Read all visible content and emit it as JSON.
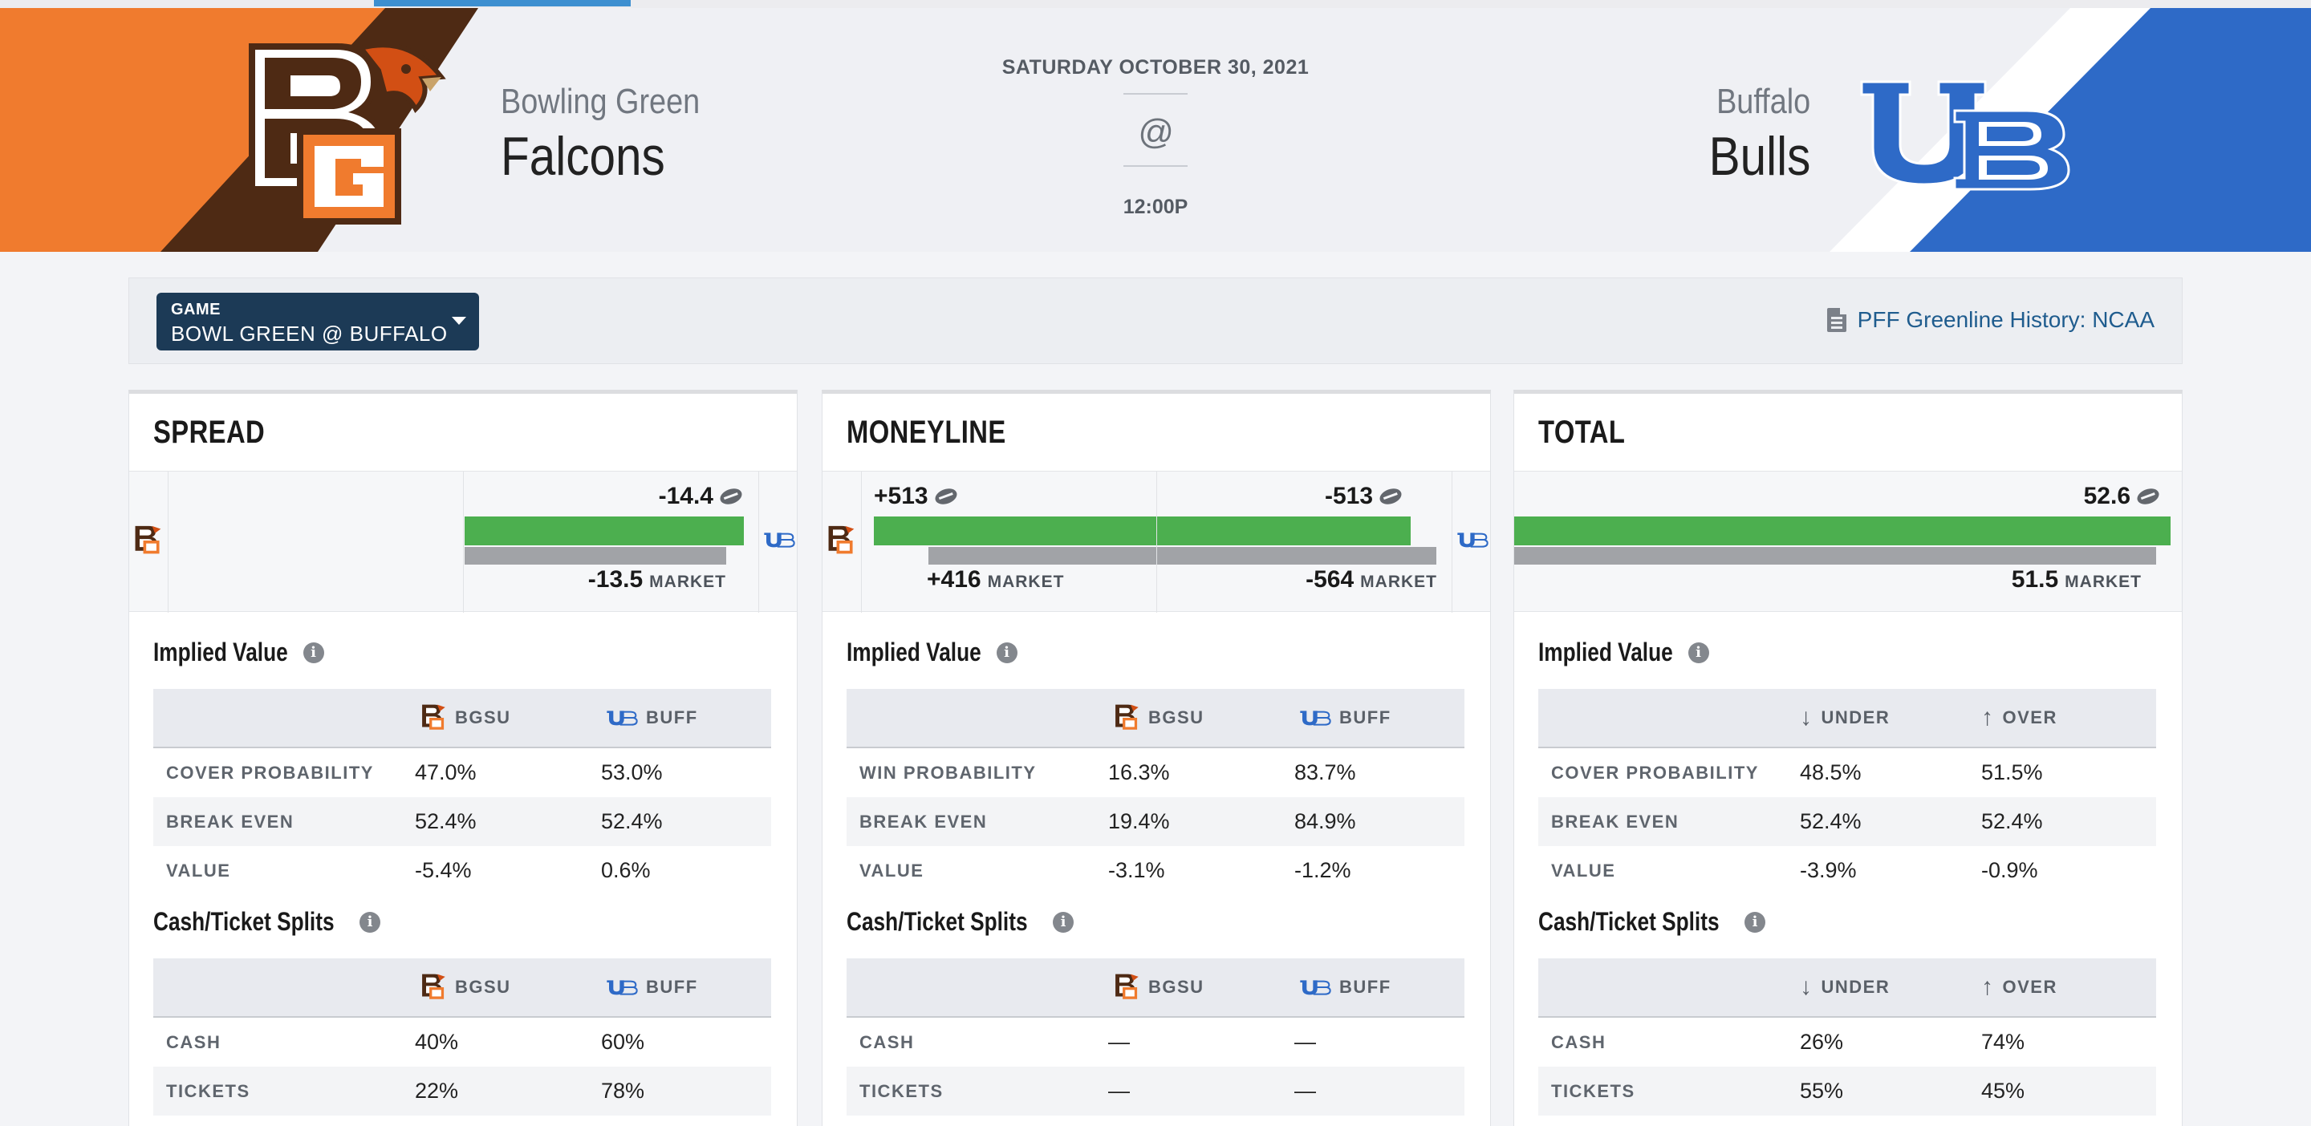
{
  "header": {
    "date": "SATURDAY OCTOBER 30, 2021",
    "at": "@",
    "time": "12:00P",
    "away": {
      "city": "Bowling Green",
      "name": "Falcons",
      "color": "#f07b2e",
      "stripe": "#4e2a14"
    },
    "home": {
      "city": "Buffalo",
      "name": "Bulls",
      "color": "#2e6ac7"
    }
  },
  "selector": {
    "label": "GAME",
    "value": "BOWL GREEN @ BUFFALO",
    "history_link": "PFF Greenline History: NCAA"
  },
  "colors": {
    "green": "#4caf4f",
    "gray": "#a1a3a7",
    "navy": "#1c3a56",
    "link": "#1f5c8e"
  },
  "cards": {
    "spread": {
      "title": "SPREAD",
      "pff_value": "-14.4",
      "market_value": "-13.5",
      "market_label": "MARKET",
      "implied_title": "Implied Value",
      "implied_headers": [
        "BGSU",
        "BUFF"
      ],
      "implied_rows": [
        {
          "label": "COVER PROBABILITY",
          "a": "47.0%",
          "b": "53.0%"
        },
        {
          "label": "BREAK EVEN",
          "a": "52.4%",
          "b": "52.4%"
        },
        {
          "label": "VALUE",
          "a": "-5.4%",
          "b": "0.6%"
        }
      ],
      "splits_title": "Cash/Ticket Splits",
      "splits_headers": [
        "BGSU",
        "BUFF"
      ],
      "splits_rows": [
        {
          "label": "CASH",
          "a": "40%",
          "b": "60%"
        },
        {
          "label": "TICKETS",
          "a": "22%",
          "b": "78%"
        }
      ]
    },
    "moneyline": {
      "title": "MONEYLINE",
      "away_pff": "+513",
      "home_pff": "-513",
      "away_market": "+416",
      "home_market": "-564",
      "market_label": "MARKET",
      "implied_title": "Implied Value",
      "implied_headers": [
        "BGSU",
        "BUFF"
      ],
      "implied_rows": [
        {
          "label": "WIN PROBABILITY",
          "a": "16.3%",
          "b": "83.7%"
        },
        {
          "label": "BREAK EVEN",
          "a": "19.4%",
          "b": "84.9%"
        },
        {
          "label": "VALUE",
          "a": "-3.1%",
          "b": "-1.2%"
        }
      ],
      "splits_title": "Cash/Ticket Splits",
      "splits_headers": [
        "BGSU",
        "BUFF"
      ],
      "splits_rows": [
        {
          "label": "CASH",
          "a": "—",
          "b": "—"
        },
        {
          "label": "TICKETS",
          "a": "—",
          "b": "—"
        }
      ]
    },
    "total": {
      "title": "TOTAL",
      "pff_value": "52.6",
      "market_value": "51.5",
      "market_label": "MARKET",
      "implied_title": "Implied Value",
      "implied_headers": [
        "UNDER",
        "OVER"
      ],
      "implied_rows": [
        {
          "label": "COVER PROBABILITY",
          "a": "48.5%",
          "b": "51.5%"
        },
        {
          "label": "BREAK EVEN",
          "a": "52.4%",
          "b": "52.4%"
        },
        {
          "label": "VALUE",
          "a": "-3.9%",
          "b": "-0.9%"
        }
      ],
      "splits_title": "Cash/Ticket Splits",
      "splits_headers": [
        "UNDER",
        "OVER"
      ],
      "splits_rows": [
        {
          "label": "CASH",
          "a": "26%",
          "b": "74%"
        },
        {
          "label": "TICKETS",
          "a": "55%",
          "b": "45%"
        }
      ]
    }
  }
}
